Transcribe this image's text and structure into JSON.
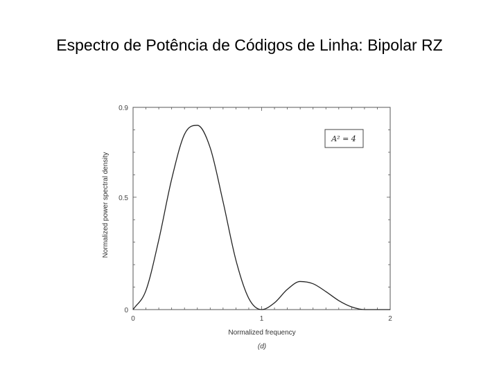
{
  "slide": {
    "title": "Espectro de Potência de Códigos de Linha: Bipolar RZ"
  },
  "chart_data": {
    "type": "line",
    "xlabel": "Normalized frequency",
    "ylabel": "Normalized power spectral density",
    "caption": "(d)",
    "legend": "A² = 4",
    "legend_placement": "top-right",
    "grid": false,
    "xlim": [
      0,
      2
    ],
    "ylim": [
      0,
      0.9
    ],
    "x_ticks": [
      "0",
      "1",
      "2"
    ],
    "y_ticks": [
      "0",
      "0.5",
      "0.9"
    ],
    "series": [
      {
        "x": [
          0,
          0.1,
          0.2,
          0.3,
          0.4,
          0.5,
          0.6,
          0.7,
          0.8,
          0.9,
          1.0,
          1.1,
          1.2,
          1.3,
          1.4,
          1.5,
          1.6,
          1.7,
          1.8,
          1.9,
          2.0
        ],
        "y": [
          0,
          0.085,
          0.31,
          0.58,
          0.78,
          0.82,
          0.72,
          0.48,
          0.22,
          0.05,
          0,
          0.03,
          0.09,
          0.125,
          0.115,
          0.08,
          0.04,
          0.012,
          0,
          0,
          0
        ]
      }
    ],
    "color": "#222222"
  }
}
